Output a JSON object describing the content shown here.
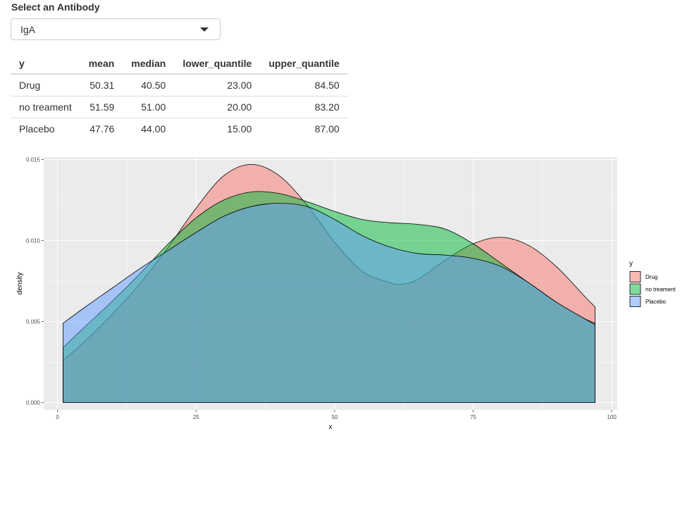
{
  "selector": {
    "label": "Select an Antibody",
    "value": "IgA"
  },
  "table": {
    "headers": [
      "y",
      "mean",
      "median",
      "lower_quantile",
      "upper_quantile"
    ],
    "rows": [
      [
        "Drug",
        "50.31",
        "40.50",
        "23.00",
        "84.50"
      ],
      [
        "no treament",
        "51.59",
        "51.00",
        "20.00",
        "83.20"
      ],
      [
        "Placebo",
        "47.76",
        "44.00",
        "15.00",
        "87.00"
      ]
    ]
  },
  "chart_data": {
    "type": "area",
    "title": "",
    "xlabel": "x",
    "ylabel": "density",
    "xlim": [
      -2.5,
      101
    ],
    "ylim": [
      -0.00045,
      0.01515
    ],
    "x_ticks": [
      0,
      25,
      50,
      75,
      100
    ],
    "x_tick_labels": [
      "0",
      "25",
      "50",
      "75",
      "100"
    ],
    "y_ticks": [
      0,
      0.005,
      0.01,
      0.015
    ],
    "y_tick_labels": [
      "0.000",
      "0.005",
      "0.010",
      "0.015"
    ],
    "grid": true,
    "legend_title": "y",
    "legend_position": "right",
    "series": [
      {
        "name": "Drug",
        "color": "#F8766D",
        "x": [
          1,
          5,
          10,
          15,
          20,
          25,
          30,
          35,
          40,
          45,
          50,
          55,
          60,
          62,
          65,
          70,
          75,
          80,
          85,
          90,
          95,
          97
        ],
        "y": [
          0.0026,
          0.0038,
          0.0055,
          0.0074,
          0.0096,
          0.012,
          0.014,
          0.0147,
          0.014,
          0.0122,
          0.0099,
          0.0081,
          0.0074,
          0.0073,
          0.0076,
          0.0088,
          0.0098,
          0.0102,
          0.0097,
          0.0084,
          0.0066,
          0.0059
        ]
      },
      {
        "name": "no treament",
        "color": "#00BA38",
        "x": [
          1,
          5,
          10,
          15,
          20,
          25,
          30,
          35,
          40,
          45,
          50,
          55,
          60,
          65,
          70,
          75,
          80,
          85,
          90,
          95,
          97
        ],
        "y": [
          0.0034,
          0.0047,
          0.0063,
          0.008,
          0.0098,
          0.0114,
          0.0125,
          0.013,
          0.0129,
          0.0124,
          0.0118,
          0.0113,
          0.0111,
          0.011,
          0.0107,
          0.0098,
          0.0086,
          0.0074,
          0.0062,
          0.0052,
          0.0049
        ]
      },
      {
        "name": "Placebo",
        "color": "#619CFF",
        "x": [
          1,
          5,
          10,
          15,
          20,
          25,
          30,
          35,
          40,
          45,
          50,
          55,
          60,
          65,
          70,
          75,
          80,
          85,
          90,
          95,
          97
        ],
        "y": [
          0.0049,
          0.0059,
          0.0071,
          0.0083,
          0.0094,
          0.0105,
          0.0115,
          0.0121,
          0.0123,
          0.0121,
          0.0113,
          0.0103,
          0.0096,
          0.0092,
          0.0091,
          0.0089,
          0.0084,
          0.0074,
          0.0062,
          0.0052,
          0.0048
        ]
      }
    ]
  }
}
